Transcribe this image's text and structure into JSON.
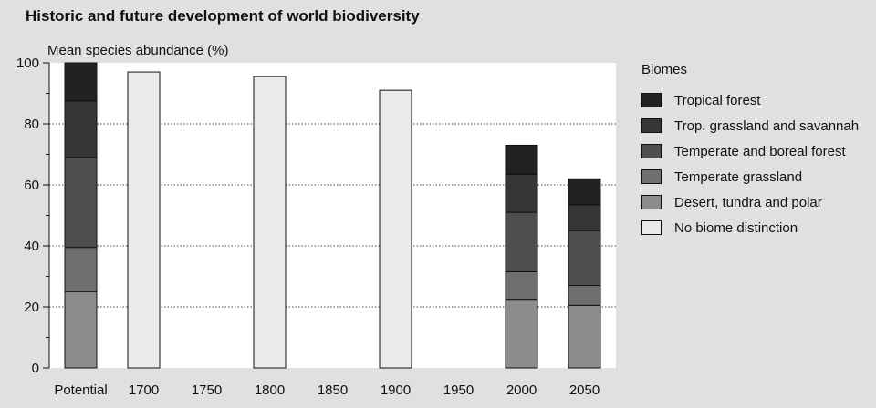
{
  "chart_data": {
    "type": "bar",
    "stacked": true,
    "title": "Historic and future development of world biodiversity",
    "ylabel": "Mean species abundance (%)",
    "xlabel": "",
    "ylim": [
      0,
      100
    ],
    "yticks": [
      "0",
      "20",
      "40",
      "60",
      "80",
      "100"
    ],
    "categories": [
      "Potential",
      "1700",
      "1750",
      "1800",
      "1850",
      "1900",
      "1950",
      "2000",
      "2050"
    ],
    "grid": "horizontal dotted",
    "legend_title": "Biomes",
    "legend_position": "right",
    "series": [
      {
        "name": "Desert, tundra and polar",
        "color": "#8c8c8c",
        "values": [
          25,
          null,
          null,
          null,
          null,
          null,
          null,
          22.5,
          20.5
        ]
      },
      {
        "name": "Temperate grassland",
        "color": "#6f6f6f",
        "values": [
          14.5,
          null,
          null,
          null,
          null,
          null,
          null,
          9,
          6.5
        ]
      },
      {
        "name": "Temperate and boreal forest",
        "color": "#4e4e4e",
        "values": [
          29.5,
          null,
          null,
          null,
          null,
          null,
          null,
          19.5,
          18
        ]
      },
      {
        "name": "Trop. grassland and savannah",
        "color": "#363636",
        "values": [
          18.5,
          null,
          null,
          null,
          null,
          null,
          null,
          12.5,
          8.5
        ]
      },
      {
        "name": "Tropical forest",
        "color": "#222222",
        "values": [
          12.5,
          null,
          null,
          null,
          null,
          null,
          null,
          9.5,
          8.5
        ]
      },
      {
        "name": "No biome distinction",
        "color": "#ebebeb",
        "values": [
          null,
          97,
          null,
          95.5,
          null,
          91,
          null,
          null,
          null
        ]
      }
    ],
    "legend_order": [
      4,
      3,
      2,
      1,
      0,
      5
    ]
  }
}
